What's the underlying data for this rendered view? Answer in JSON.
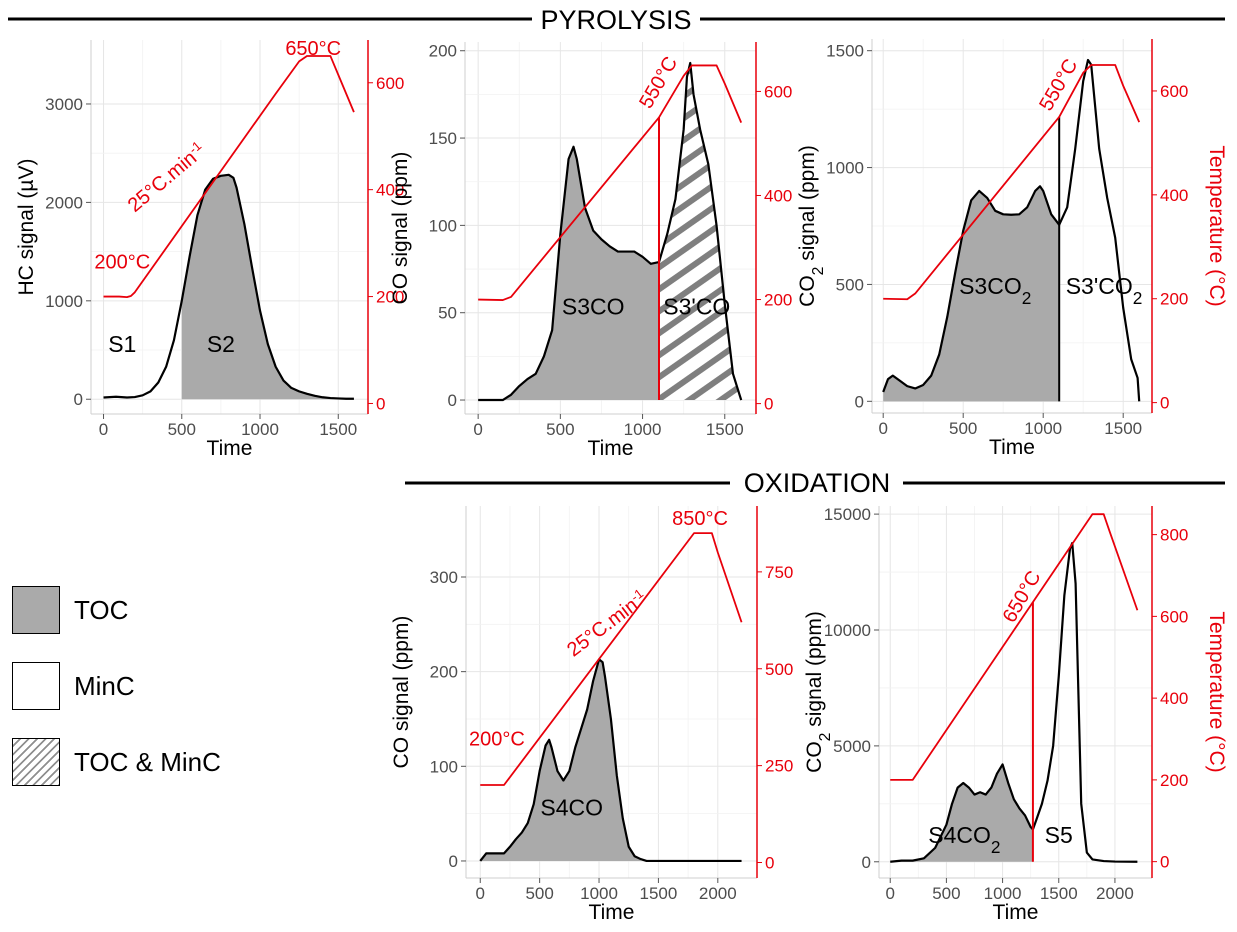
{
  "section_titles": {
    "pyrolysis": "PYROLYSIS",
    "oxidation": "OXIDATION"
  },
  "legend": [
    {
      "label": "TOC",
      "pattern": "grey"
    },
    {
      "label": "MinC",
      "pattern": "white"
    },
    {
      "label": "TOC & MinC",
      "pattern": "hatch"
    }
  ],
  "colors": {
    "grey_fill": "#aaaaaa",
    "temperature": "#e8000b",
    "hatch": "#7f7f7f"
  },
  "chart_data": [
    {
      "id": "hc",
      "type": "area",
      "xlabel": "Time",
      "ylabel": "HC signal (µV)",
      "y2label": "",
      "xlim": [
        -80,
        1690
      ],
      "ylim": [
        -150,
        3650
      ],
      "y2lim": [
        -19.7,
        680
      ],
      "xticks": [
        0,
        500,
        1000,
        1500
      ],
      "yticks": [
        0,
        1000,
        2000,
        3000
      ],
      "y2ticks": [
        0,
        200,
        400,
        600
      ],
      "series": [
        {
          "role": "signal",
          "x": [
            0,
            80,
            150,
            200,
            250,
            300,
            350,
            400,
            450,
            500,
            550,
            600,
            650,
            700,
            750,
            800,
            830,
            850,
            900,
            950,
            1000,
            1050,
            1100,
            1150,
            1200,
            1250,
            1300,
            1350,
            1400,
            1450,
            1500,
            1550,
            1600
          ],
          "values": [
            18,
            25,
            18,
            22,
            40,
            80,
            170,
            330,
            600,
            1000,
            1450,
            1870,
            2130,
            2240,
            2270,
            2280,
            2250,
            2150,
            1780,
            1330,
            900,
            560,
            330,
            190,
            115,
            80,
            55,
            35,
            20,
            12,
            8,
            5,
            5
          ]
        },
        {
          "role": "temperature",
          "x": [
            0,
            50,
            100,
            150,
            175,
            200,
            1100,
            1250,
            1300,
            1450,
            1500,
            1600
          ],
          "values": [
            200,
            200,
            200,
            199,
            201,
            208,
            579.5,
            640,
            650,
            650,
            615,
            545
          ]
        }
      ],
      "shaded": [
        {
          "pattern": "grey",
          "from": 500,
          "to": 1600
        }
      ],
      "annotations": [
        {
          "text": "S1",
          "x": 120,
          "y": 480
        },
        {
          "text": "S2",
          "x": 750,
          "y": 480
        },
        {
          "text": "200°C",
          "x": 120,
          "y": 1330,
          "color": "red"
        },
        {
          "text": "650°C",
          "x": 1340,
          "y": 3500,
          "color": "red"
        },
        {
          "text": "25°C.min⁻¹",
          "x": 430,
          "y": 2200,
          "color": "red",
          "rotate": -40
        }
      ]
    },
    {
      "id": "co-pyro",
      "type": "area",
      "xlabel": "Time",
      "ylabel": "CO signal (ppm)",
      "y2label": "",
      "xlim": [
        -80,
        1690
      ],
      "ylim": [
        -8,
        205
      ],
      "y2lim": [
        -20,
        695
      ],
      "xticks": [
        0,
        500,
        1000,
        1500
      ],
      "yticks": [
        0,
        50,
        100,
        150,
        200
      ],
      "y2ticks": [
        0,
        200,
        400,
        600
      ],
      "series": [
        {
          "role": "signal",
          "x": [
            0,
            150,
            200,
            250,
            300,
            350,
            400,
            450,
            500,
            550,
            580,
            600,
            650,
            700,
            750,
            800,
            850,
            900,
            950,
            1000,
            1050,
            1100,
            1150,
            1200,
            1250,
            1270,
            1290,
            1310,
            1350,
            1400,
            1450,
            1500,
            1550,
            1600
          ],
          "values": [
            0,
            0,
            3,
            8,
            12,
            15,
            25,
            40,
            95,
            138,
            145,
            138,
            110,
            97,
            92,
            88,
            85,
            85,
            85,
            82,
            78,
            79,
            95,
            115,
            155,
            185,
            193,
            175,
            155,
            135,
            100,
            55,
            15,
            0
          ]
        },
        {
          "role": "temperature",
          "x": [
            0,
            150,
            200,
            1100,
            1250,
            1300,
            1450,
            1500,
            1600
          ],
          "values": [
            200,
            199,
            205,
            550,
            630,
            650,
            650,
            615,
            540
          ]
        }
      ],
      "shaded": [
        {
          "pattern": "grey",
          "from": 0,
          "to": 1100
        },
        {
          "pattern": "hatch",
          "from": 1100,
          "to": 1600
        }
      ],
      "vline": 1100,
      "annotations": [
        {
          "text": "S3CO",
          "x": 700,
          "y": 49
        },
        {
          "text": "S3'CO",
          "x": 1330,
          "y": 49
        },
        {
          "text": "550°C",
          "x": 1130,
          "y": 180,
          "color": "red",
          "rotate": -60
        }
      ]
    },
    {
      "id": "co2-pyro",
      "type": "area",
      "xlabel": "Time",
      "ylabel": "CO₂ signal (ppm)",
      "y2label": "Temperature (°C)",
      "xlim": [
        -70,
        1680
      ],
      "ylim": [
        -50,
        1550
      ],
      "y2lim": [
        -20,
        700
      ],
      "xticks": [
        0,
        500,
        1000,
        1500
      ],
      "yticks": [
        0,
        500,
        1000,
        1500
      ],
      "y2ticks": [
        0,
        200,
        400,
        600
      ],
      "series": [
        {
          "role": "signal",
          "x": [
            0,
            30,
            60,
            100,
            150,
            200,
            250,
            300,
            350,
            400,
            450,
            500,
            550,
            600,
            650,
            700,
            750,
            800,
            850,
            900,
            950,
            980,
            1000,
            1050,
            1100,
            1150,
            1200,
            1250,
            1280,
            1300,
            1350,
            1400,
            1450,
            1500,
            1550,
            1590,
            1600
          ],
          "values": [
            40,
            95,
            110,
            90,
            65,
            55,
            70,
            110,
            200,
            360,
            550,
            730,
            860,
            900,
            870,
            815,
            800,
            798,
            800,
            830,
            900,
            920,
            900,
            800,
            755,
            830,
            1080,
            1370,
            1460,
            1440,
            1080,
            870,
            700,
            400,
            180,
            100,
            0
          ]
        },
        {
          "role": "temperature",
          "x": [
            0,
            150,
            200,
            1100,
            1250,
            1300,
            1450,
            1500,
            1600
          ],
          "values": [
            200,
            199,
            210,
            550,
            635,
            650,
            650,
            610,
            540
          ]
        }
      ],
      "shaded": [
        {
          "pattern": "grey",
          "from": 0,
          "to": 1100
        }
      ],
      "vline": 1100,
      "annotations": [
        {
          "text": "S3CO₂",
          "x": 700,
          "y": 460
        },
        {
          "text": "S3'CO₂",
          "x": 1380,
          "y": 460
        },
        {
          "text": "550°C",
          "x": 1130,
          "y": 1340,
          "color": "red",
          "rotate": -60
        }
      ]
    },
    {
      "id": "co-ox",
      "type": "area",
      "xlabel": "Time",
      "ylabel": "CO signal (ppm)",
      "y2label": "",
      "xlim": [
        -120,
        2330
      ],
      "ylim": [
        -18,
        375
      ],
      "y2lim": [
        -40,
        920
      ],
      "xticks": [
        0,
        500,
        1000,
        1500,
        2000
      ],
      "yticks": [
        0,
        100,
        200,
        300
      ],
      "y2ticks": [
        0,
        250,
        500,
        750
      ],
      "series": [
        {
          "role": "signal",
          "x": [
            0,
            50,
            200,
            250,
            300,
            350,
            400,
            450,
            500,
            550,
            580,
            600,
            650,
            700,
            750,
            800,
            850,
            900,
            950,
            1000,
            1030,
            1050,
            1100,
            1150,
            1200,
            1250,
            1300,
            1350,
            1400,
            1500,
            2000,
            2200
          ],
          "values": [
            0,
            8,
            8,
            15,
            23,
            30,
            40,
            60,
            95,
            122,
            128,
            120,
            95,
            85,
            95,
            120,
            140,
            160,
            190,
            213,
            210,
            195,
            150,
            90,
            45,
            15,
            5,
            2,
            0,
            0,
            0,
            0
          ]
        },
        {
          "role": "temperature",
          "x": [
            0,
            100,
            200,
            1800,
            1950,
            2000,
            2200
          ],
          "values": [
            200,
            200,
            200,
            850,
            850,
            800,
            620
          ]
        }
      ],
      "shaded": [
        {
          "pattern": "grey",
          "from": 0,
          "to": 1350
        }
      ],
      "annotations": [
        {
          "text": "S4CO",
          "x": 770,
          "y": 48
        },
        {
          "text": "200°C",
          "x": 140,
          "y": 122,
          "color": "red"
        },
        {
          "text": "850°C",
          "x": 1850,
          "y": 355,
          "color": "red"
        },
        {
          "text": "25°C.min⁻¹",
          "x": 1100,
          "y": 245,
          "color": "red",
          "rotate": -37
        }
      ]
    },
    {
      "id": "co2-ox",
      "type": "area",
      "xlabel": "Time",
      "ylabel": "CO₂ signal (ppm)",
      "y2label": "Temperature (°C)",
      "xlim": [
        -100,
        2330
      ],
      "ylim": [
        -700,
        15350
      ],
      "y2lim": [
        -40,
        870
      ],
      "xticks": [
        0,
        500,
        1000,
        1500,
        2000
      ],
      "yticks": [
        0,
        5000,
        10000,
        15000
      ],
      "y2ticks": [
        0,
        200,
        400,
        600,
        800
      ],
      "series": [
        {
          "role": "signal",
          "x": [
            0,
            100,
            200,
            300,
            400,
            500,
            550,
            600,
            650,
            700,
            750,
            800,
            850,
            900,
            950,
            1000,
            1050,
            1100,
            1150,
            1200,
            1250,
            1270,
            1300,
            1350,
            1400,
            1450,
            1500,
            1550,
            1600,
            1620,
            1650,
            1700,
            1750,
            1800,
            1900,
            2000,
            2200
          ],
          "values": [
            0,
            50,
            50,
            150,
            600,
            1600,
            2500,
            3200,
            3400,
            3200,
            2900,
            3000,
            2900,
            3200,
            3800,
            4200,
            3400,
            2700,
            2300,
            2000,
            1500,
            1400,
            1800,
            2500,
            3500,
            5000,
            8000,
            11500,
            13500,
            13750,
            12000,
            2500,
            400,
            100,
            30,
            10,
            0
          ]
        },
        {
          "role": "temperature",
          "x": [
            0,
            200,
            1750,
            1800,
            1900,
            1950,
            2200
          ],
          "values": [
            200,
            200,
            830,
            850,
            850,
            810,
            615
          ]
        }
      ],
      "shaded": [
        {
          "pattern": "grey",
          "from": 0,
          "to": 1270
        }
      ],
      "vline": 1270,
      "annotations": [
        {
          "text": "S4CO₂",
          "x": 660,
          "y": 800
        },
        {
          "text": "S5",
          "x": 1500,
          "y": 800
        },
        {
          "text": "650°C",
          "x": 1220,
          "y": 11300,
          "color": "red",
          "rotate": -60
        }
      ]
    }
  ]
}
